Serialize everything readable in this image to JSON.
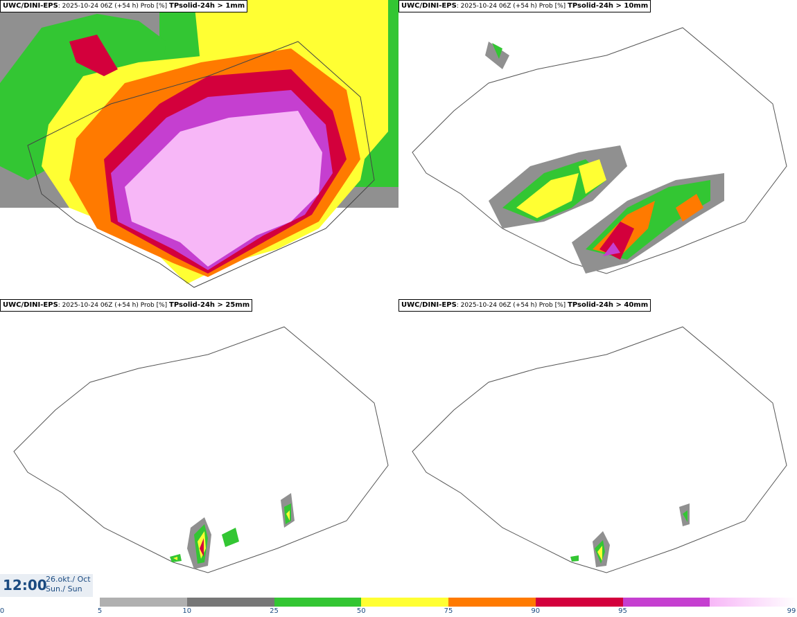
{
  "panels": [
    {
      "model": "UWC/DINI-EPS",
      "run": ": 2025-10-24 06Z (+54 h) Prob [%] ",
      "param": "TPsolid-24h > 1mm"
    },
    {
      "model": "UWC/DINI-EPS",
      "run": ": 2025-10-24 06Z (+54 h) Prob [%] ",
      "param": "TPsolid-24h > 10mm"
    },
    {
      "model": "UWC/DINI-EPS",
      "run": ": 2025-10-24 06Z (+54 h) Prob [%] ",
      "param": "TPsolid-24h > 25mm"
    },
    {
      "model": "UWC/DINI-EPS",
      "run": ": 2025-10-24 06Z (+54 h) Prob [%] ",
      "param": "TPsolid-24h > 40mm"
    }
  ],
  "valid": {
    "time": "12:00",
    "date_line1": "26.okt./ Oct",
    "date_line2": "Sun./ Sun"
  },
  "colorbar": {
    "ticks": [
      "0",
      "5",
      "10",
      "25",
      "50",
      "75",
      "90",
      "95",
      "99"
    ],
    "colors": [
      "#b0b0b0",
      "#777777",
      "#33c633",
      "#ffff33",
      "#ff7a00",
      "#d3003c",
      "#c53fd0",
      "#f7b7f7"
    ]
  }
}
